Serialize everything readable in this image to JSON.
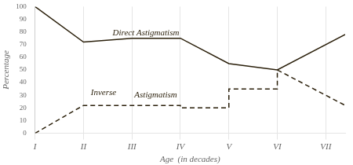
{
  "chart_data": {
    "type": "line",
    "xlabel": "Age  (in decades)",
    "ylabel": "Percentage",
    "xlim": [
      1,
      7.4
    ],
    "xticks": [
      {
        "value": 1,
        "label": "I"
      },
      {
        "value": 2,
        "label": "II"
      },
      {
        "value": 3,
        "label": "III"
      },
      {
        "value": 4,
        "label": "IV"
      },
      {
        "value": 5,
        "label": "V"
      },
      {
        "value": 6,
        "label": "VI"
      },
      {
        "value": 7,
        "label": "VII"
      }
    ],
    "ylim": [
      0,
      100
    ],
    "yticks": [
      0,
      10,
      20,
      30,
      40,
      50,
      60,
      70,
      80,
      90,
      100
    ],
    "grid": "x",
    "series": [
      {
        "color": "#2a1f0a",
        "line_style": "solid",
        "x": [
          1,
          2,
          2,
          3,
          4,
          4,
          5,
          5,
          6,
          6,
          7.4
        ],
        "values": [
          100,
          72,
          72,
          75,
          75,
          75,
          55,
          55,
          50,
          50,
          78
        ]
      },
      {
        "color": "#2a1f0a",
        "line_style": "dashed",
        "x": [
          1,
          2,
          2,
          3,
          4,
          4,
          5,
          5,
          6,
          6,
          7.4
        ],
        "values": [
          0,
          22,
          22,
          22,
          22,
          20,
          20,
          35,
          35,
          50,
          22
        ]
      }
    ],
    "annotations": [
      {
        "text": "Direct Astigmatism",
        "x": 2.6,
        "y": 77
      },
      {
        "text": "Inverse",
        "x": 2.15,
        "y": 30
      },
      {
        "text": "Astigmatism",
        "x": 3.05,
        "y": 28
      }
    ]
  }
}
